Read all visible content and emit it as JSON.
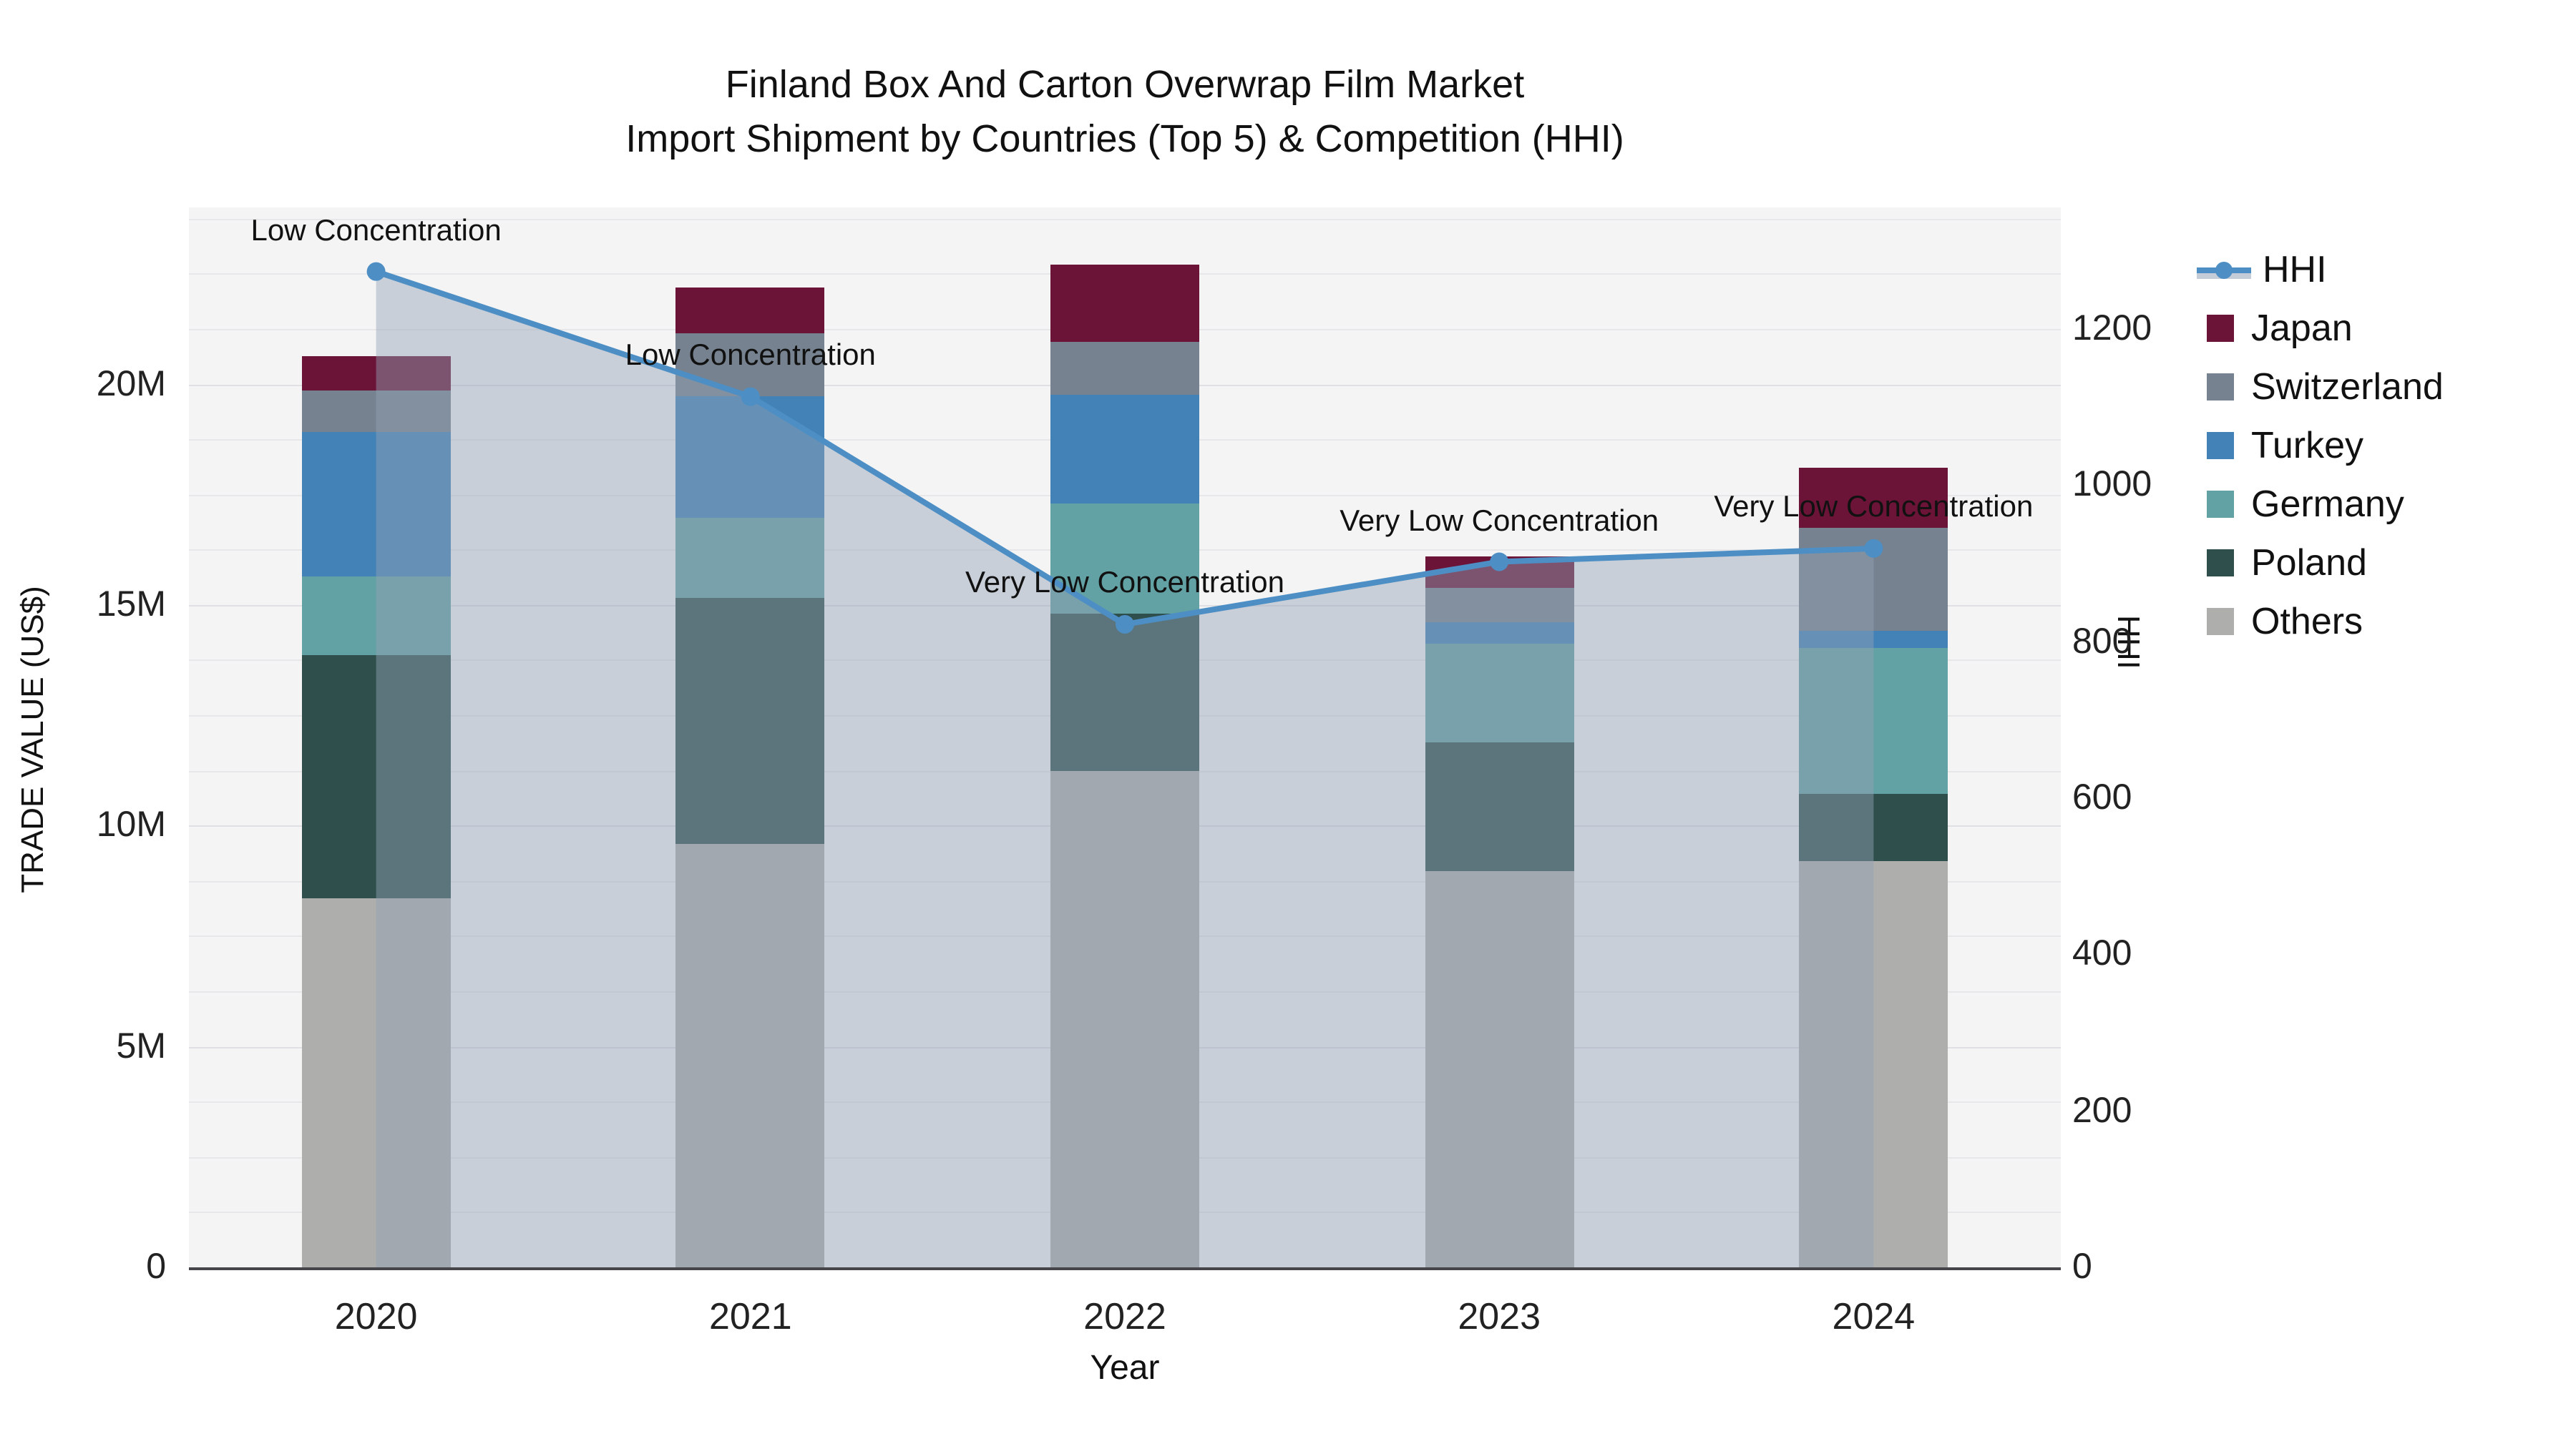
{
  "title": {
    "line1": "Finland Box And Carton Overwrap Film Market",
    "line2": "Import Shipment by Countries (Top 5) & Competition (HHI)"
  },
  "axes": {
    "left": {
      "title": "TRADE VALUE (US$)",
      "tick_labels": [
        "0",
        "5M",
        "10M",
        "15M",
        "20M"
      ],
      "tick_values": [
        0,
        5,
        10,
        15,
        20
      ]
    },
    "right": {
      "title": "HHI",
      "tick_labels": [
        "0",
        "200",
        "400",
        "600",
        "800",
        "1000",
        "1200"
      ],
      "tick_values": [
        0,
        200,
        400,
        600,
        800,
        1000,
        1200
      ]
    },
    "x": {
      "title": "Year"
    }
  },
  "legend": {
    "items": [
      {
        "label": "HHI",
        "type": "line",
        "color": "#4D8FC4"
      },
      {
        "label": "Japan",
        "type": "box",
        "color": "#6B1437"
      },
      {
        "label": "Switzerland",
        "type": "box",
        "color": "#76828F"
      },
      {
        "label": "Turkey",
        "type": "box",
        "color": "#4282B7"
      },
      {
        "label": "Germany",
        "type": "box",
        "color": "#62A1A4"
      },
      {
        "label": "Poland",
        "type": "box",
        "color": "#2F4F4C"
      },
      {
        "label": "Others",
        "type": "box",
        "color": "#AEAEAC"
      }
    ]
  },
  "chart_data": {
    "type": "bar",
    "subtype": "stacked-bars-with-line",
    "categories": [
      "2020",
      "2021",
      "2022",
      "2023",
      "2024"
    ],
    "units": "M US$ (left axis), HHI index (right axis)",
    "ylim_left": [
      0,
      24
    ],
    "ylim_right": [
      0,
      1355
    ],
    "grid": "on",
    "legend_position": "right",
    "series": [
      {
        "name": "Japan",
        "type": "bar",
        "axis": "left",
        "color": "#6B1437",
        "values": [
          0.78,
          1.04,
          1.73,
          0.71,
          1.36
        ]
      },
      {
        "name": "Switzerland",
        "type": "bar",
        "axis": "left",
        "color": "#76828F",
        "values": [
          0.92,
          1.43,
          1.19,
          0.76,
          2.32
        ]
      },
      {
        "name": "Turkey",
        "type": "bar",
        "axis": "left",
        "color": "#4282B7",
        "values": [
          3.3,
          2.75,
          2.46,
          0.5,
          0.37
        ]
      },
      {
        "name": "Germany",
        "type": "bar",
        "axis": "left",
        "color": "#62A1A4",
        "values": [
          1.77,
          1.81,
          2.51,
          2.22,
          3.32
        ]
      },
      {
        "name": "Poland",
        "type": "bar",
        "axis": "left",
        "color": "#2F4F4C",
        "values": [
          5.5,
          5.57,
          3.55,
          2.93,
          1.52
        ]
      },
      {
        "name": "Others",
        "type": "bar",
        "axis": "left",
        "color": "#AEAEAC",
        "values": [
          8.36,
          9.59,
          11.25,
          8.97,
          9.2
        ]
      },
      {
        "name": "HHI",
        "type": "line",
        "axis": "right",
        "color": "#4D8FC4",
        "area_fill": "rgba(148,162,182,0.45)",
        "values": [
          1273,
          1113,
          822,
          902,
          919
        ]
      }
    ],
    "stack_order": [
      "Others",
      "Poland",
      "Germany",
      "Turkey",
      "Switzerland",
      "Japan"
    ],
    "bar_totals": [
      20.63,
      22.19,
      22.69,
      16.09,
      18.09
    ],
    "annotations": [
      {
        "category": "2020",
        "text": "Low Concentration"
      },
      {
        "category": "2021",
        "text": "Low Concentration"
      },
      {
        "category": "2022",
        "text": "Very Low Concentration"
      },
      {
        "category": "2023",
        "text": "Very Low Concentration"
      },
      {
        "category": "2024",
        "text": "Very Low Concentration"
      }
    ]
  }
}
